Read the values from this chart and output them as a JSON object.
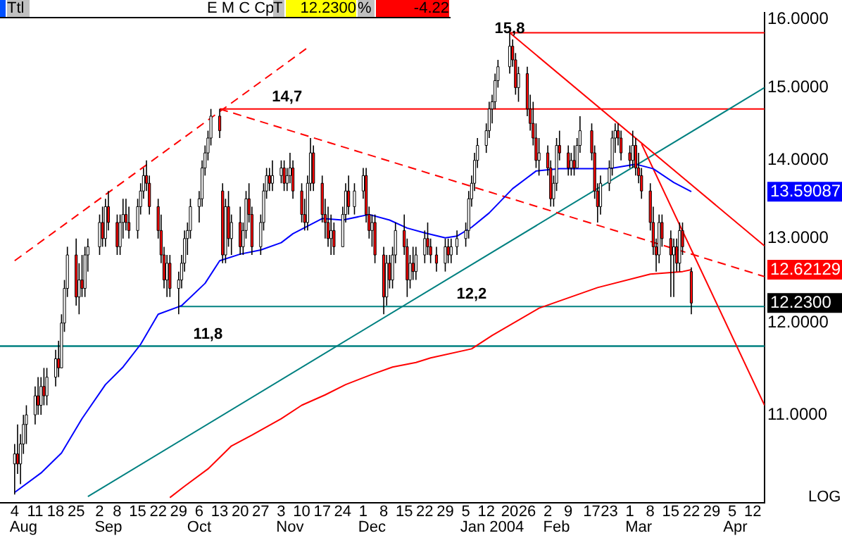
{
  "chart_data": {
    "type": "candlestick",
    "log": true,
    "x": [
      "2003-08-04",
      "2003-08-05",
      "2003-08-06",
      "2003-08-07",
      "2003-08-08",
      "2003-08-11",
      "2003-08-12",
      "2003-08-13",
      "2003-08-14",
      "2003-08-15",
      "2003-08-18",
      "2003-08-19",
      "2003-08-20",
      "2003-08-21",
      "2003-08-22",
      "2003-08-25",
      "2003-08-26",
      "2003-08-27",
      "2003-08-28",
      "2003-08-29",
      "2003-09-02",
      "2003-09-03",
      "2003-09-04",
      "2003-09-05",
      "2003-09-08",
      "2003-09-09",
      "2003-09-10",
      "2003-09-11",
      "2003-09-12",
      "2003-09-15",
      "2003-09-16",
      "2003-09-17",
      "2003-09-18",
      "2003-09-19",
      "2003-09-22",
      "2003-09-23",
      "2003-09-24",
      "2003-09-25",
      "2003-09-26",
      "2003-09-29",
      "2003-09-30",
      "2003-10-01",
      "2003-10-02",
      "2003-10-03",
      "2003-10-06",
      "2003-10-07",
      "2003-10-08",
      "2003-10-09",
      "2003-10-10",
      "2003-10-13",
      "2003-10-14",
      "2003-10-15",
      "2003-10-16",
      "2003-10-17",
      "2003-10-20",
      "2003-10-21",
      "2003-10-22",
      "2003-10-23",
      "2003-10-24",
      "2003-10-27",
      "2003-10-28",
      "2003-10-29",
      "2003-10-30",
      "2003-10-31",
      "2003-11-03",
      "2003-11-04",
      "2003-11-05",
      "2003-11-06",
      "2003-11-07",
      "2003-11-10",
      "2003-11-11",
      "2003-11-12",
      "2003-11-13",
      "2003-11-14",
      "2003-11-17",
      "2003-11-18",
      "2003-11-19",
      "2003-11-20",
      "2003-11-21",
      "2003-11-24",
      "2003-11-25",
      "2003-11-26",
      "2003-11-28",
      "2003-12-01",
      "2003-12-02",
      "2003-12-03",
      "2003-12-04",
      "2003-12-05",
      "2003-12-08",
      "2003-12-09",
      "2003-12-10",
      "2003-12-11",
      "2003-12-12",
      "2003-12-15",
      "2003-12-16",
      "2003-12-17",
      "2003-12-18",
      "2003-12-19",
      "2003-12-22",
      "2003-12-23",
      "2003-12-24",
      "2003-12-26",
      "2003-12-29",
      "2003-12-30",
      "2003-12-31",
      "2004-01-02",
      "2004-01-05",
      "2004-01-06",
      "2004-01-07",
      "2004-01-08",
      "2004-01-09",
      "2004-01-12",
      "2004-01-13",
      "2004-01-14",
      "2004-01-15",
      "2004-01-16",
      "2004-01-20",
      "2004-01-21",
      "2004-01-22",
      "2004-01-23",
      "2004-01-26",
      "2004-01-27",
      "2004-01-28",
      "2004-01-29",
      "2004-01-30",
      "2004-02-02",
      "2004-02-03",
      "2004-02-04",
      "2004-02-05",
      "2004-02-06",
      "2004-02-09",
      "2004-02-10",
      "2004-02-11",
      "2004-02-12",
      "2004-02-13",
      "2004-02-17",
      "2004-02-18",
      "2004-02-19",
      "2004-02-20",
      "2004-02-23",
      "2004-02-24",
      "2004-02-25",
      "2004-02-26",
      "2004-02-27",
      "2004-03-01",
      "2004-03-02",
      "2004-03-03",
      "2004-03-04",
      "2004-03-05",
      "2004-03-08",
      "2004-03-09",
      "2004-03-10",
      "2004-03-11",
      "2004-03-12",
      "2004-03-15",
      "2004-03-16",
      "2004-03-17",
      "2004-03-18",
      "2004-03-19",
      "2004-03-22"
    ],
    "ohlc": [
      [
        10.5,
        10.7,
        10.2,
        10.6
      ],
      [
        10.6,
        10.9,
        10.4,
        10.5
      ],
      [
        10.5,
        10.8,
        10.3,
        10.7
      ],
      [
        10.7,
        11.0,
        10.6,
        10.9
      ],
      [
        10.9,
        11.1,
        10.7,
        11.0
      ],
      [
        11.0,
        11.3,
        10.9,
        11.2
      ],
      [
        11.2,
        11.4,
        11.0,
        11.1
      ],
      [
        11.1,
        11.4,
        11.0,
        11.3
      ],
      [
        11.3,
        11.5,
        11.1,
        11.2
      ],
      [
        11.2,
        11.5,
        11.1,
        11.4
      ],
      [
        11.4,
        11.7,
        11.3,
        11.6
      ],
      [
        11.6,
        11.8,
        11.4,
        11.5
      ],
      [
        11.5,
        12.1,
        11.5,
        12.0
      ],
      [
        12.0,
        12.5,
        11.9,
        12.4
      ],
      [
        12.4,
        12.9,
        12.3,
        12.8
      ],
      [
        12.8,
        13.0,
        12.2,
        12.3
      ],
      [
        12.3,
        12.7,
        12.1,
        12.5
      ],
      [
        12.5,
        12.8,
        12.3,
        12.4
      ],
      [
        12.4,
        12.9,
        12.3,
        12.8
      ],
      [
        12.8,
        13.0,
        12.6,
        12.9
      ],
      [
        12.9,
        13.3,
        12.8,
        13.2
      ],
      [
        13.2,
        13.4,
        12.9,
        13.0
      ],
      [
        13.0,
        13.5,
        12.9,
        13.4
      ],
      [
        13.4,
        13.6,
        13.1,
        13.2
      ],
      [
        13.2,
        13.3,
        12.8,
        12.9
      ],
      [
        12.9,
        13.3,
        12.8,
        13.2
      ],
      [
        13.2,
        13.5,
        13.0,
        13.3
      ],
      [
        13.3,
        13.5,
        13.1,
        13.2
      ],
      [
        13.2,
        13.4,
        13.0,
        13.1
      ],
      [
        13.1,
        13.5,
        13.0,
        13.4
      ],
      [
        13.4,
        13.7,
        13.3,
        13.6
      ],
      [
        13.6,
        13.9,
        13.5,
        13.8
      ],
      [
        13.8,
        14.0,
        13.6,
        13.7
      ],
      [
        13.7,
        13.8,
        13.3,
        13.4
      ],
      [
        13.4,
        13.5,
        13.0,
        13.1
      ],
      [
        13.1,
        13.3,
        12.7,
        12.8
      ],
      [
        12.8,
        12.9,
        12.4,
        12.5
      ],
      [
        12.5,
        12.8,
        12.3,
        12.7
      ],
      [
        12.7,
        12.8,
        12.3,
        12.4
      ],
      [
        12.4,
        12.6,
        12.1,
        12.5
      ],
      [
        12.5,
        12.8,
        12.4,
        12.7
      ],
      [
        12.7,
        13.1,
        12.6,
        13.0
      ],
      [
        13.0,
        13.2,
        12.8,
        13.1
      ],
      [
        13.1,
        13.5,
        13.0,
        13.4
      ],
      [
        13.4,
        13.6,
        13.2,
        13.5
      ],
      [
        13.5,
        14.0,
        13.4,
        13.9
      ],
      [
        13.9,
        14.2,
        13.8,
        14.1
      ],
      [
        14.1,
        14.4,
        14.0,
        14.3
      ],
      [
        14.3,
        14.7,
        14.2,
        14.6
      ],
      [
        14.6,
        14.7,
        14.3,
        14.4
      ],
      [
        13.6,
        13.7,
        12.7,
        12.8
      ],
      [
        12.8,
        13.5,
        12.7,
        13.4
      ],
      [
        13.4,
        13.6,
        12.9,
        13.0
      ],
      [
        13.0,
        13.3,
        12.8,
        13.2
      ],
      [
        13.2,
        13.4,
        12.8,
        12.9
      ],
      [
        12.9,
        13.2,
        12.8,
        13.1
      ],
      [
        13.1,
        13.6,
        13.0,
        13.5
      ],
      [
        13.5,
        13.7,
        13.2,
        13.3
      ],
      [
        13.3,
        13.4,
        12.8,
        12.9
      ],
      [
        12.9,
        13.3,
        12.8,
        13.2
      ],
      [
        13.2,
        13.7,
        13.1,
        13.6
      ],
      [
        13.6,
        13.9,
        13.5,
        13.8
      ],
      [
        13.8,
        13.9,
        13.6,
        13.7
      ],
      [
        13.7,
        14.0,
        13.6,
        13.8
      ],
      [
        13.8,
        14.0,
        13.7,
        13.9
      ],
      [
        13.9,
        14.0,
        13.6,
        13.7
      ],
      [
        13.7,
        13.9,
        13.6,
        13.8
      ],
      [
        13.8,
        14.1,
        13.7,
        13.9
      ],
      [
        13.9,
        14.0,
        13.5,
        13.6
      ],
      [
        13.6,
        13.7,
        13.2,
        13.3
      ],
      [
        13.3,
        13.5,
        13.1,
        13.2
      ],
      [
        13.2,
        13.8,
        13.1,
        13.7
      ],
      [
        13.7,
        14.3,
        13.6,
        14.1
      ],
      [
        14.1,
        14.2,
        13.6,
        13.7
      ],
      [
        13.7,
        13.8,
        13.2,
        13.3
      ],
      [
        13.3,
        13.5,
        13.0,
        13.2
      ],
      [
        13.2,
        13.4,
        12.9,
        13.0
      ],
      [
        13.0,
        13.3,
        12.8,
        13.1
      ],
      [
        13.1,
        13.2,
        12.8,
        12.9
      ],
      [
        12.9,
        13.4,
        12.9,
        13.3
      ],
      [
        13.3,
        13.7,
        13.2,
        13.6
      ],
      [
        13.6,
        13.8,
        13.3,
        13.4
      ],
      [
        13.4,
        13.7,
        13.3,
        13.6
      ],
      [
        13.6,
        13.9,
        13.5,
        13.8
      ],
      [
        13.8,
        13.9,
        13.2,
        13.3
      ],
      [
        13.3,
        13.4,
        13.0,
        13.1
      ],
      [
        13.1,
        13.3,
        12.9,
        13.2
      ],
      [
        13.2,
        13.3,
        12.7,
        12.8
      ],
      [
        12.8,
        12.9,
        12.1,
        12.3
      ],
      [
        12.3,
        12.8,
        12.2,
        12.7
      ],
      [
        12.7,
        12.8,
        12.4,
        12.5
      ],
      [
        12.5,
        12.9,
        12.4,
        12.8
      ],
      [
        12.8,
        13.2,
        12.7,
        13.1
      ],
      [
        13.1,
        13.3,
        12.8,
        12.9
      ],
      [
        12.9,
        13.0,
        12.3,
        12.5
      ],
      [
        12.5,
        12.8,
        12.4,
        12.7
      ],
      [
        12.7,
        12.9,
        12.5,
        12.6
      ],
      [
        12.6,
        12.9,
        12.5,
        12.8
      ],
      [
        12.8,
        13.1,
        12.7,
        13.0
      ],
      [
        13.0,
        13.2,
        12.8,
        12.9
      ],
      [
        12.9,
        13.0,
        12.7,
        12.8
      ],
      [
        12.8,
        12.9,
        12.6,
        12.7
      ],
      [
        12.7,
        13.0,
        12.6,
        12.9
      ],
      [
        12.9,
        13.0,
        12.7,
        12.8
      ],
      [
        12.8,
        13.0,
        12.7,
        12.9
      ],
      [
        12.9,
        13.1,
        12.8,
        13.0
      ],
      [
        13.0,
        13.2,
        12.9,
        13.1
      ],
      [
        13.1,
        13.6,
        13.0,
        13.5
      ],
      [
        13.5,
        13.8,
        13.4,
        13.7
      ],
      [
        13.7,
        14.1,
        13.6,
        14.0
      ],
      [
        14.0,
        14.3,
        13.9,
        14.2
      ],
      [
        14.2,
        14.5,
        14.1,
        14.4
      ],
      [
        14.4,
        14.8,
        14.3,
        14.7
      ],
      [
        14.7,
        14.9,
        14.5,
        14.8
      ],
      [
        14.8,
        15.2,
        14.7,
        15.1
      ],
      [
        15.1,
        15.4,
        15.0,
        15.3
      ],
      [
        15.3,
        15.8,
        15.2,
        15.6
      ],
      [
        15.6,
        15.7,
        15.3,
        15.4
      ],
      [
        15.4,
        15.5,
        14.9,
        15.0
      ],
      [
        15.0,
        15.3,
        14.8,
        15.2
      ],
      [
        15.2,
        15.3,
        14.6,
        14.7
      ],
      [
        14.7,
        14.9,
        14.4,
        14.5
      ],
      [
        14.5,
        14.8,
        14.2,
        14.3
      ],
      [
        14.3,
        14.5,
        13.9,
        14.0
      ],
      [
        14.0,
        14.3,
        13.8,
        14.1
      ],
      [
        14.1,
        14.2,
        13.8,
        13.9
      ],
      [
        13.9,
        14.0,
        13.4,
        13.5
      ],
      [
        13.5,
        13.8,
        13.4,
        13.7
      ],
      [
        13.7,
        14.3,
        13.6,
        14.2
      ],
      [
        14.2,
        14.4,
        14.0,
        14.1
      ],
      [
        14.1,
        14.2,
        13.8,
        13.9
      ],
      [
        13.9,
        14.1,
        13.8,
        14.0
      ],
      [
        14.0,
        14.2,
        13.8,
        13.9
      ],
      [
        13.9,
        14.3,
        13.9,
        14.2
      ],
      [
        14.2,
        14.6,
        14.1,
        14.4
      ],
      [
        14.4,
        14.5,
        14.0,
        14.1
      ],
      [
        14.1,
        14.2,
        13.5,
        13.6
      ],
      [
        13.6,
        13.7,
        13.2,
        13.4
      ],
      [
        13.4,
        13.8,
        13.3,
        13.7
      ],
      [
        13.7,
        14.0,
        13.6,
        13.9
      ],
      [
        13.9,
        14.4,
        13.8,
        14.3
      ],
      [
        14.3,
        14.5,
        14.1,
        14.4
      ],
      [
        14.4,
        14.5,
        14.2,
        14.3
      ],
      [
        14.3,
        14.4,
        14.0,
        14.1
      ],
      [
        14.1,
        14.2,
        13.9,
        14.0
      ],
      [
        14.0,
        14.4,
        13.9,
        14.2
      ],
      [
        14.2,
        14.3,
        13.8,
        13.9
      ],
      [
        13.9,
        14.1,
        13.7,
        13.8
      ],
      [
        13.8,
        13.9,
        13.5,
        13.6
      ],
      [
        13.6,
        13.7,
        13.1,
        13.2
      ],
      [
        13.2,
        13.4,
        12.8,
        12.9
      ],
      [
        12.9,
        13.0,
        12.6,
        12.8
      ],
      [
        12.8,
        13.3,
        12.7,
        13.2
      ],
      [
        13.2,
        13.3,
        12.9,
        13.0
      ],
      [
        13.0,
        13.1,
        12.3,
        12.8
      ],
      [
        12.8,
        13.0,
        12.3,
        12.9
      ],
      [
        12.9,
        13.0,
        12.6,
        12.7
      ],
      [
        12.7,
        13.2,
        12.6,
        13.1
      ],
      [
        13.1,
        13.2,
        12.8,
        12.9
      ],
      [
        12.6,
        12.65,
        12.1,
        12.23
      ]
    ],
    "series": [
      {
        "type": "line",
        "color": "#0000ff",
        "x": [
          "2003-08-04",
          "2003-08-13",
          "2003-08-20",
          "2003-08-27",
          "2003-09-04",
          "2003-09-10",
          "2003-09-16",
          "2003-09-22",
          "2003-09-30",
          "2003-10-08",
          "2003-10-13",
          "2003-10-20",
          "2003-10-27",
          "2003-11-03",
          "2003-11-07",
          "2003-11-17",
          "2003-11-24",
          "2003-12-03",
          "2003-12-10",
          "2003-12-16",
          "2003-12-22",
          "2003-12-29",
          "2004-01-02",
          "2004-01-07",
          "2004-01-13",
          "2004-01-21",
          "2004-01-29",
          "2004-02-06",
          "2004-02-23",
          "2004-03-03",
          "2004-03-09",
          "2004-03-16",
          "2004-03-22"
        ],
        "values": [
          10.22,
          10.41,
          10.61,
          10.96,
          11.32,
          11.51,
          11.76,
          12.1,
          12.2,
          12.46,
          12.73,
          12.81,
          12.86,
          12.95,
          13.06,
          13.25,
          13.23,
          13.3,
          13.23,
          13.13,
          13.07,
          13.01,
          13.03,
          13.14,
          13.32,
          13.63,
          13.86,
          13.89,
          13.89,
          13.95,
          13.89,
          13.71,
          13.59087
        ]
      },
      {
        "type": "line",
        "color": "#ff0000",
        "x": [
          "2003-09-26",
          "2003-10-01",
          "2003-10-09",
          "2003-10-17",
          "2003-10-24",
          "2003-11-03",
          "2003-11-10",
          "2003-11-18",
          "2003-11-25",
          "2003-12-04",
          "2003-12-11",
          "2003-12-19",
          "2003-12-24",
          "2004-01-07",
          "2004-01-14",
          "2004-01-30",
          "2004-02-19",
          "2004-03-08",
          "2004-03-19",
          "2004-03-22"
        ],
        "values": [
          10.17,
          10.28,
          10.45,
          10.68,
          10.79,
          10.96,
          11.1,
          11.21,
          11.32,
          11.43,
          11.51,
          11.56,
          11.61,
          11.71,
          11.86,
          12.17,
          12.41,
          12.57,
          12.6,
          12.62129
        ]
      },
      {
        "type": "line",
        "color": "#ff0000",
        "line_style": "dashed",
        "x": [
          "2003-08-04",
          "2003-11-13"
        ],
        "values": [
          12.73,
          15.61
        ]
      },
      {
        "type": "line",
        "color": "#ff0000",
        "line_style": "dashed",
        "x": [
          "2003-10-13",
          "2004-04-16"
        ],
        "values": [
          14.7,
          12.54
        ]
      },
      {
        "type": "line",
        "color": "#ff0000",
        "x": [
          "2004-01-20",
          "2004-04-16"
        ],
        "values": [
          15.8,
          12.91
        ]
      },
      {
        "type": "line",
        "color": "#ff0000",
        "x": [
          "2004-03-05",
          "2004-04-16"
        ],
        "values": [
          14.22,
          11.1
        ]
      },
      {
        "type": "line",
        "color": "#008080",
        "x": [
          "2003-08-29",
          "2004-04-16"
        ],
        "values": [
          10.18,
          15.0
        ]
      },
      {
        "type": "line",
        "color": "#ff0000",
        "x": [
          "2004-01-20",
          "2004-04-16"
        ],
        "values": [
          15.8,
          15.8
        ]
      },
      {
        "type": "line",
        "color": "#ff0000",
        "x": [
          "2003-10-13",
          "2004-04-16"
        ],
        "values": [
          14.7,
          14.7
        ]
      },
      {
        "type": "line",
        "color": "#008080",
        "x": [
          "2003-09-29",
          "2004-04-16"
        ],
        "values": [
          12.19,
          12.19
        ]
      }
    ],
    "ref_lines": [
      {
        "axis": "y",
        "value": 11.74,
        "color": "#008080"
      }
    ],
    "annotations": [
      "Ttl",
      "E M C Cp",
      "T",
      "12.2300",
      "%",
      "-4.22",
      "LOG",
      {
        "text": "15,8",
        "x": "2004-01-20",
        "y": 15.8
      },
      {
        "text": "14,7",
        "x": "2003-11-05",
        "y": 14.7
      },
      {
        "text": "12,2",
        "x": "2004-01-07",
        "y": 12.19
      },
      {
        "text": "11,8",
        "x": "2003-10-09",
        "y": 11.74
      },
      "13.59087",
      "12.62129",
      "12.2300"
    ],
    "ylim": [
      10.12,
      16.1
    ],
    "yticks": [
      {
        "value": 11,
        "label": "11.0000"
      },
      {
        "value": 12,
        "label": "12.0000"
      },
      {
        "value": 13,
        "label": "13.0000"
      },
      {
        "value": 14,
        "label": "14.0000"
      },
      {
        "value": 15,
        "label": "15.0000"
      },
      {
        "value": 16,
        "label": "16.0000"
      }
    ],
    "xlim": [
      "2003-07-30",
      "2004-04-16"
    ],
    "xticks": [
      {
        "value": "2003-08-04",
        "label": "4"
      },
      {
        "value": "2003-08-11",
        "label": "11"
      },
      {
        "value": "2003-08-18",
        "label": "18"
      },
      {
        "value": "2003-08-25",
        "label": "25"
      },
      {
        "value": "2003-09-02",
        "label": "2"
      },
      {
        "value": "2003-09-08",
        "label": "8"
      },
      {
        "value": "2003-09-15",
        "label": "15"
      },
      {
        "value": "2003-09-22",
        "label": "22"
      },
      {
        "value": "2003-09-29",
        "label": "29"
      },
      {
        "value": "2003-10-06",
        "label": "6"
      },
      {
        "value": "2003-10-13",
        "label": "13"
      },
      {
        "value": "2003-10-20",
        "label": "20"
      },
      {
        "value": "2003-10-27",
        "label": "27"
      },
      {
        "value": "2003-11-03",
        "label": "3"
      },
      {
        "value": "2003-11-10",
        "label": "10"
      },
      {
        "value": "2003-11-17",
        "label": "17"
      },
      {
        "value": "2003-11-24",
        "label": "24"
      },
      {
        "value": "2003-12-01",
        "label": "1"
      },
      {
        "value": "2003-12-08",
        "label": "8"
      },
      {
        "value": "2003-12-15",
        "label": "15"
      },
      {
        "value": "2003-12-22",
        "label": "22"
      },
      {
        "value": "2003-12-29",
        "label": "29"
      },
      {
        "value": "2004-01-05",
        "label": "5"
      },
      {
        "value": "2004-01-12",
        "label": "12"
      },
      {
        "value": "2004-01-20",
        "label": "20"
      },
      {
        "value": "2004-01-26",
        "label": "26"
      },
      {
        "value": "2004-02-02",
        "label": "2"
      },
      {
        "value": "2004-02-09",
        "label": "9"
      },
      {
        "value": "2004-02-17",
        "label": "17"
      },
      {
        "value": "2004-02-23",
        "label": "23"
      },
      {
        "value": "2004-03-01",
        "label": "1"
      },
      {
        "value": "2004-03-08",
        "label": "8"
      },
      {
        "value": "2004-03-15",
        "label": "15"
      },
      {
        "value": "2004-03-22",
        "label": "22"
      },
      {
        "value": "2004-03-29",
        "label": "29"
      },
      {
        "value": "2004-04-05",
        "label": "5"
      },
      {
        "value": "2004-04-12",
        "label": "12"
      }
    ],
    "x2lim": [
      "2003-07-30",
      "2004-04-16"
    ],
    "x2ticks": [
      {
        "value": "2003-08-07",
        "label": "Aug"
      },
      {
        "value": "2003-09-05",
        "label": "Sep"
      },
      {
        "value": "2003-10-06",
        "label": "Oct"
      },
      {
        "value": "2003-11-06",
        "label": "Nov"
      },
      {
        "value": "2003-12-04",
        "label": "Dec"
      },
      {
        "value": "2004-01-14",
        "label": "Jan 2004"
      },
      {
        "value": "2004-02-05",
        "label": "Feb"
      },
      {
        "value": "2004-03-04",
        "label": "Mar"
      },
      {
        "value": "2004-04-06",
        "label": "Apr"
      }
    ]
  }
}
